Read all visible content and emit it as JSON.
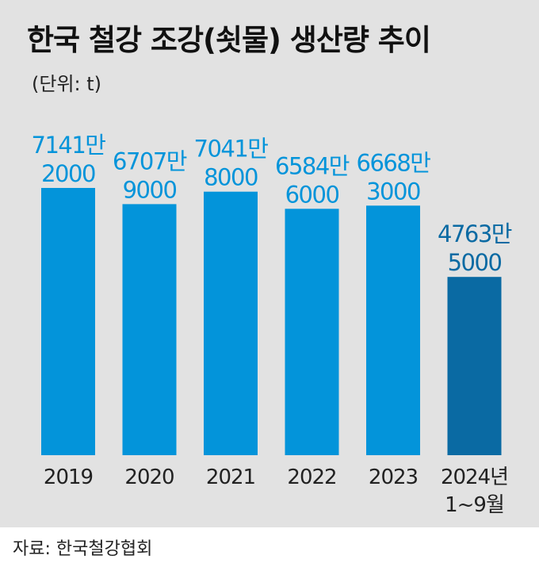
{
  "title": "한국 철강 조강(쇳물) 생산량 추이",
  "unit_label": "(단위: t)",
  "source": "자료: 한국철강협회",
  "colors": {
    "bar": "#0394da",
    "bar_highlight": "#0a6aa3",
    "label": "#0394da",
    "label_highlight": "#0a6aa3",
    "background": "#e2e2e2"
  },
  "chart_data": {
    "type": "bar",
    "categories": [
      [
        "2019"
      ],
      [
        "2020"
      ],
      [
        "2021"
      ],
      [
        "2022"
      ],
      [
        "2023"
      ],
      [
        "2024년",
        "1~9월"
      ]
    ],
    "values": [
      71412000,
      67079000,
      70418000,
      65846000,
      66683000,
      47635000
    ],
    "value_labels": [
      [
        "7141만",
        "2000"
      ],
      [
        "6707만",
        "9000"
      ],
      [
        "7041만",
        "8000"
      ],
      [
        "6584만",
        "6000"
      ],
      [
        "6668만",
        "3000"
      ],
      [
        "4763만",
        "5000"
      ]
    ],
    "highlight_index": 5,
    "grid": false,
    "legend": "none"
  }
}
